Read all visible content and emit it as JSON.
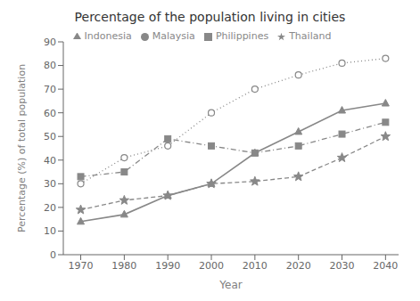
{
  "chart_data": {
    "type": "line",
    "title": "Percentage of the population living in cities",
    "xlabel": "Year",
    "ylabel": "Percentage (%) of total population",
    "x": [
      1970,
      1980,
      1990,
      2000,
      2010,
      2020,
      2030,
      2040
    ],
    "series": [
      {
        "name": "Philippines",
        "color": "#888888",
        "marker": "square",
        "line_style": "dashdot",
        "values": [
          33,
          35,
          49,
          46,
          43,
          46,
          51,
          56
        ]
      },
      {
        "name": "Malaysia",
        "color": "#888888",
        "marker": "circle",
        "line_style": "dotted",
        "values": [
          30,
          41,
          46,
          60,
          70,
          76,
          81,
          83
        ]
      },
      {
        "name": "Thailand",
        "color": "#888888",
        "marker": "star",
        "line_style": "dashed",
        "values": [
          19,
          23,
          25,
          30,
          31,
          33,
          41,
          50
        ]
      },
      {
        "name": "Indonesia",
        "color": "#888888",
        "marker": "triangle",
        "line_style": "solid",
        "values": [
          14,
          17,
          25,
          30,
          43,
          52,
          61,
          64
        ]
      }
    ],
    "xlim": [
      1966,
      2043
    ],
    "xticks": [
      1970,
      1980,
      1990,
      2000,
      2010,
      2020,
      2030,
      2040
    ],
    "ylim": [
      0,
      90
    ],
    "yticks": [
      0,
      10,
      20,
      30,
      40,
      50,
      60,
      70,
      80,
      90
    ],
    "grid": false,
    "legend": "top"
  }
}
